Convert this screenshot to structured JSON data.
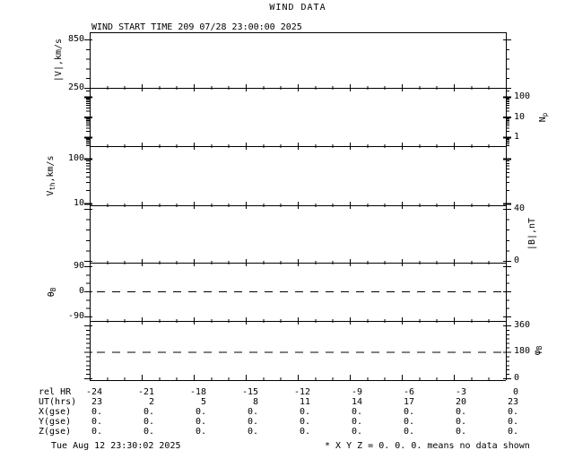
{
  "background_color": "#ffffff",
  "foreground_color": "#000000",
  "chart_data": {
    "type": "line",
    "title": "WIND DATA",
    "start_time_label": "WIND START TIME 209 07/28 23:00:00 2025",
    "footer_left": "Tue Aug 12 23:30:02 2025",
    "footer_note": "* X Y Z = 0. 0. 0. means no data shown",
    "grid": false,
    "x_axis": {
      "range_rel_hours": [
        -24,
        0
      ],
      "minor_step_hours": 1,
      "major_step_hours": 3
    },
    "panels": [
      {
        "name": "flow-speed",
        "ylabel_parts": [
          {
            "t": "|V|,km/s"
          }
        ],
        "label_side": "left",
        "scale": "linear",
        "vmin": 250,
        "vmax": 939,
        "majors": [
          {
            "v": 850,
            "label": "850"
          },
          {
            "v": 250,
            "label": "250"
          }
        ],
        "minors": [
          370,
          490,
          610,
          730
        ],
        "dashed_at": null,
        "series": []
      },
      {
        "name": "proton-density",
        "ylabel_parts": [
          {
            "t": "N"
          },
          {
            "t": "p",
            "sub": true
          }
        ],
        "label_side": "right",
        "scale": "log",
        "vmin": 0.36,
        "vmax": 278,
        "majors": [
          {
            "v": 100,
            "label": "100"
          },
          {
            "v": 10,
            "label": "10"
          },
          {
            "v": 1,
            "label": "1"
          }
        ],
        "minors": [],
        "dashed_at": null,
        "series": []
      },
      {
        "name": "thermal-speed",
        "ylabel_parts": [
          {
            "t": "V"
          },
          {
            "t": "th",
            "sub": true
          },
          {
            "t": ",km/s"
          }
        ],
        "label_side": "left",
        "scale": "log",
        "vmin": 9.1,
        "vmax": 190,
        "majors": [
          {
            "v": 100,
            "label": "100"
          },
          {
            "v": 10,
            "label": "10"
          }
        ],
        "minors": [],
        "dashed_at": null,
        "series": []
      },
      {
        "name": "field-magnitude",
        "ylabel_parts": [
          {
            "t": "|B|,nT"
          }
        ],
        "label_side": "right",
        "scale": "linear",
        "vmin": -1.4,
        "vmax": 42.8,
        "majors": [
          {
            "v": 40,
            "label": "40"
          },
          {
            "v": 0,
            "label": "0"
          }
        ],
        "minors": [
          8,
          16,
          24,
          32
        ],
        "dashed_at": null,
        "series": []
      },
      {
        "name": "theta-b",
        "ylabel_parts": [
          {
            "t": "θ"
          },
          {
            "t": "B",
            "sub": true
          }
        ],
        "label_side": "left",
        "scale": "linear",
        "vmin": -106,
        "vmax": 103,
        "majors": [
          {
            "v": 90,
            "label": "90"
          },
          {
            "v": 0,
            "label": "0"
          },
          {
            "v": -90,
            "label": "-90"
          }
        ],
        "minors": [
          -60,
          -30,
          30,
          60
        ],
        "dashed_at": 0,
        "series": []
      },
      {
        "name": "phi-b",
        "ylabel_parts": [
          {
            "t": "φ"
          },
          {
            "t": "B",
            "sub": true
          }
        ],
        "label_side": "right",
        "scale": "linear",
        "vmin": -12,
        "vmax": 390,
        "majors": [
          {
            "v": 360,
            "label": "360"
          },
          {
            "v": 180,
            "label": "180"
          },
          {
            "v": 0,
            "label": "0"
          }
        ],
        "minors": [
          30,
          60,
          90,
          120,
          150,
          210,
          240,
          270,
          300,
          330
        ],
        "dashed_at": 180,
        "series": []
      }
    ],
    "table": {
      "row_labels": [
        "rel HR",
        "UT(hrs)",
        "X(gse)",
        "Y(gse)",
        "Z(gse)"
      ],
      "rel_hr": [
        "-24",
        "-21",
        "-18",
        "-15",
        "-12",
        "-9",
        "-6",
        "-3",
        "0"
      ],
      "ut_hrs": [
        "23",
        "2",
        "5",
        "8",
        "11",
        "14",
        "17",
        "20",
        "23"
      ],
      "x_gse": [
        "0.",
        "0.",
        "0.",
        "0.",
        "0.",
        "0.",
        "0.",
        "0.",
        "0."
      ],
      "y_gse": [
        "0.",
        "0.",
        "0.",
        "0.",
        "0.",
        "0.",
        "0.",
        "0.",
        "0."
      ],
      "z_gse": [
        "0.",
        "0.",
        "0.",
        "0.",
        "0.",
        "0.",
        "0.",
        "0.",
        "0."
      ]
    }
  }
}
